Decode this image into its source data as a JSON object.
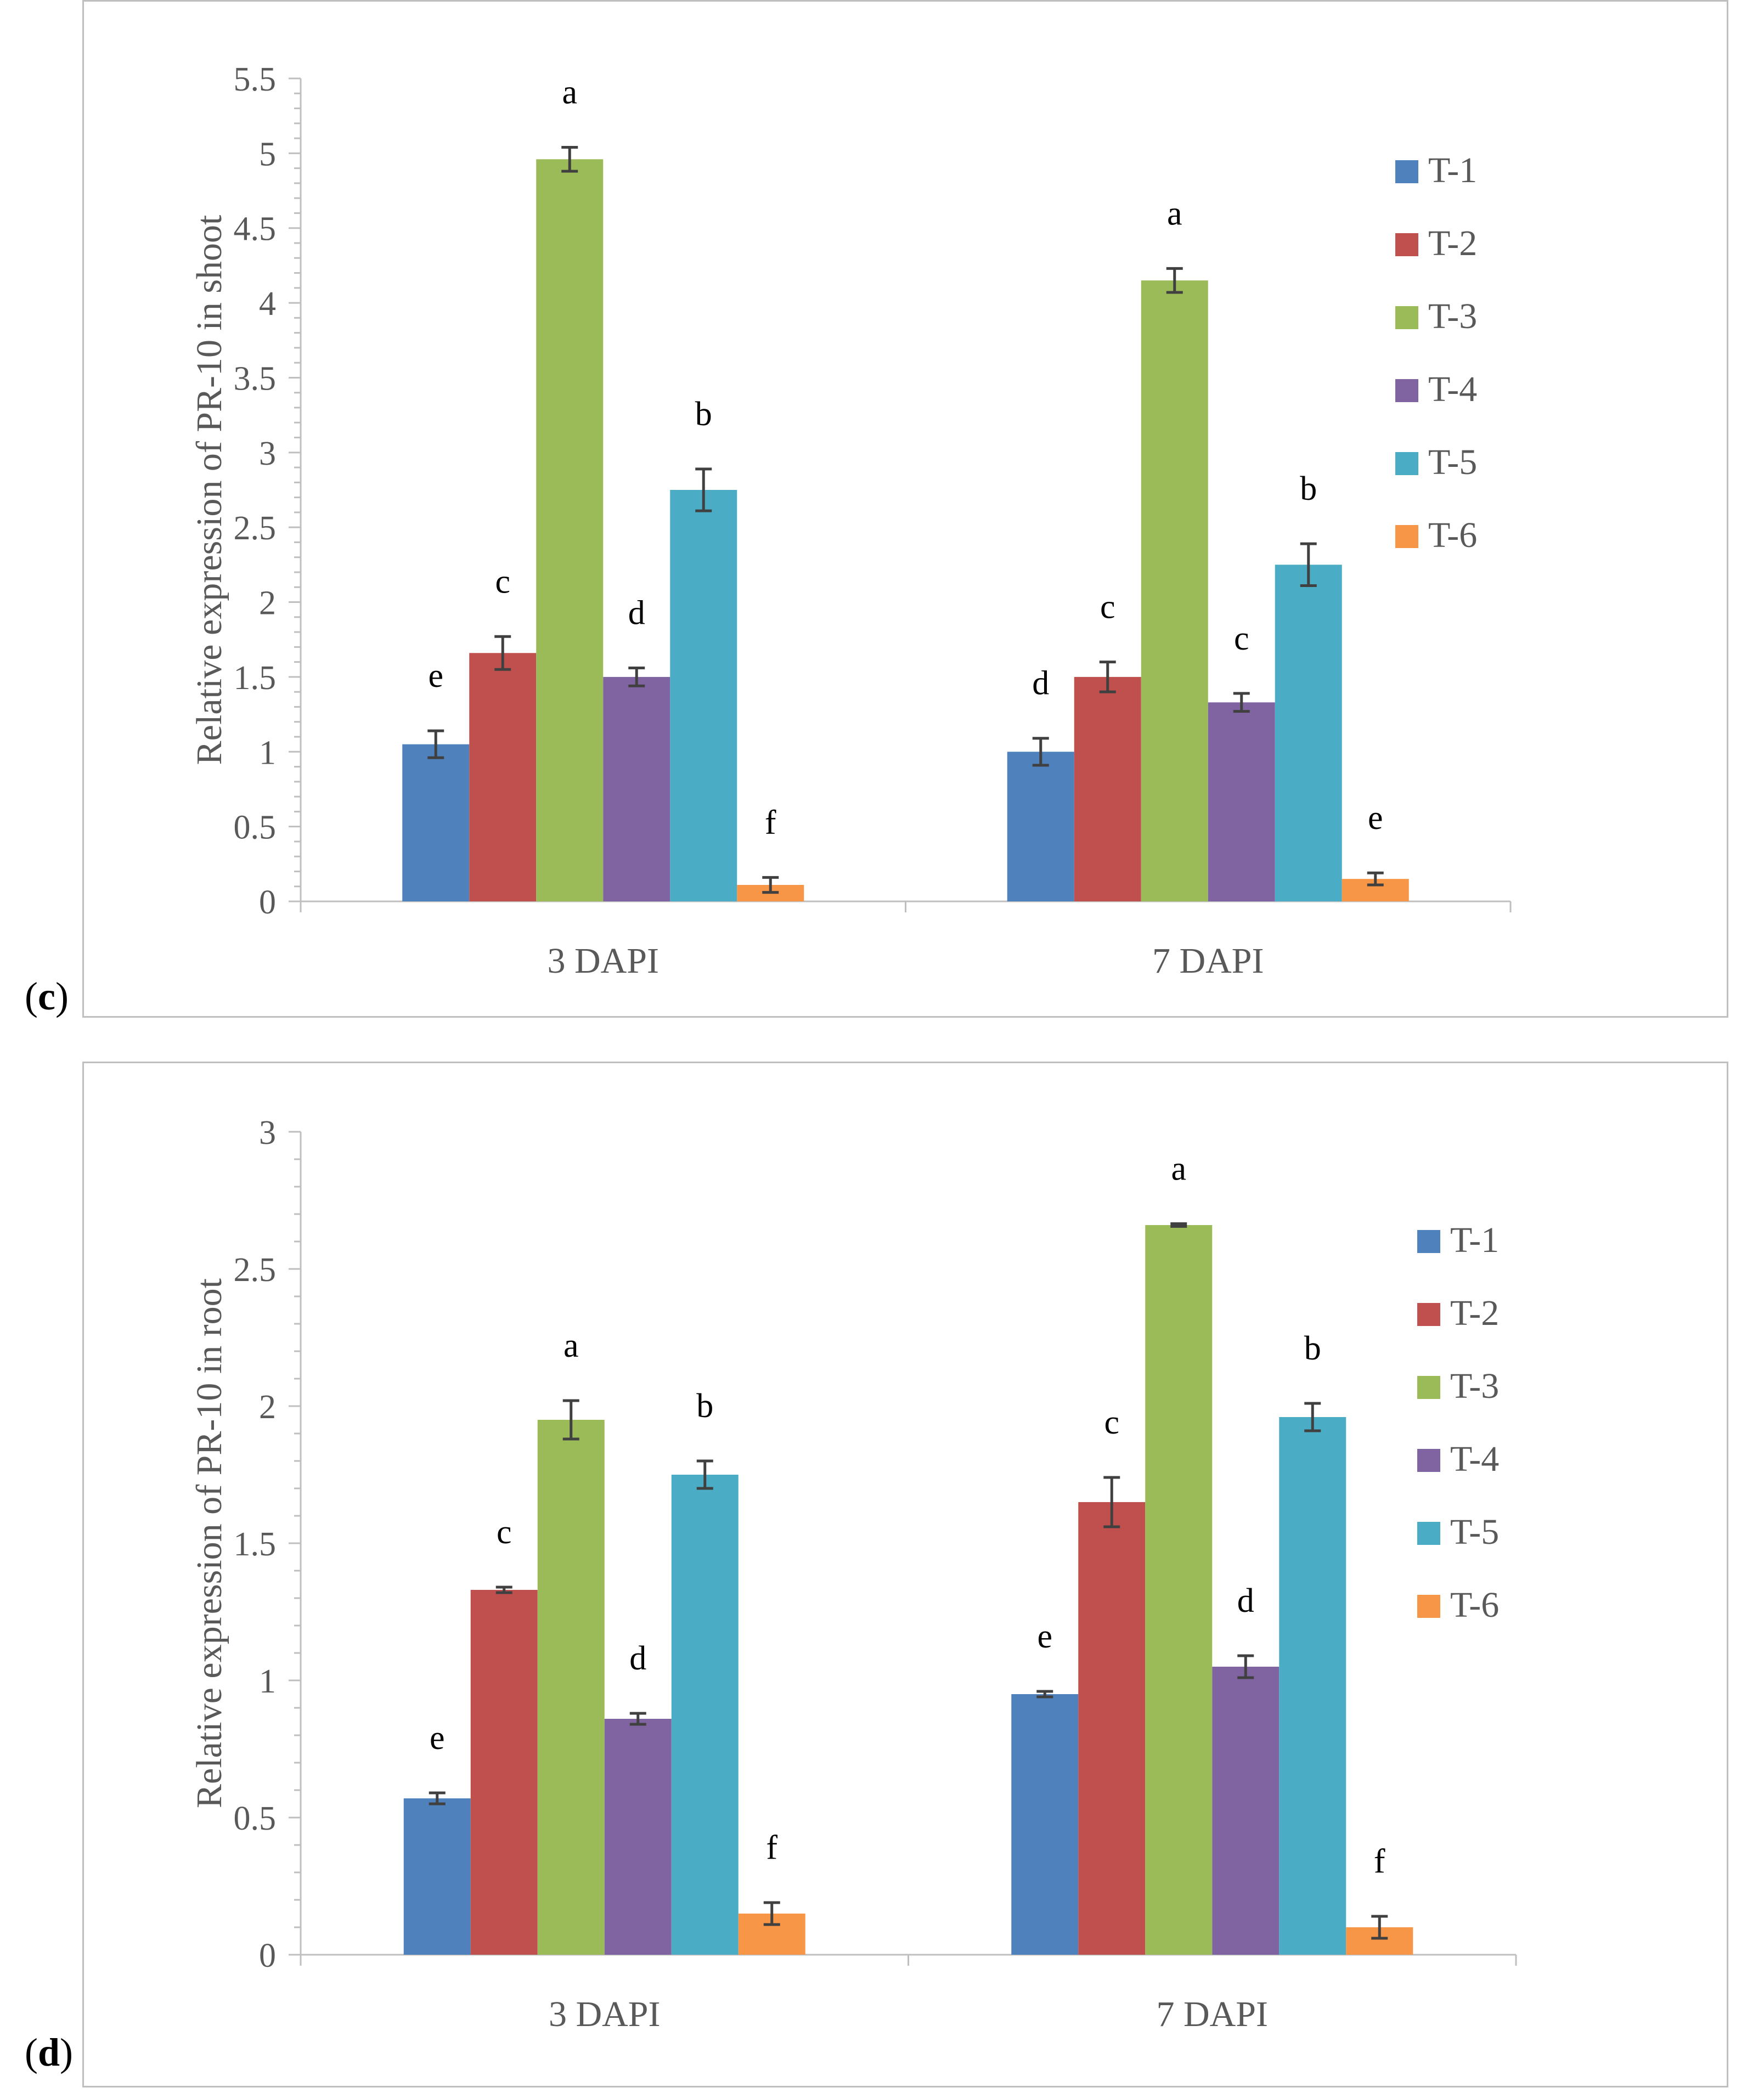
{
  "panels": [
    {
      "label": "c",
      "open": "(",
      "close": ")"
    },
    {
      "label": "d",
      "open": "(",
      "close": ")"
    }
  ],
  "chart_data": [
    {
      "type": "bar",
      "ylabel": "Relative expression of PR-10 in shoot",
      "xlabel": "",
      "categories": [
        "3 DAPI",
        "7 DAPI"
      ],
      "ylim": [
        0,
        5.5
      ],
      "yticks": [
        "0",
        "0.5",
        "1",
        "1.5",
        "2",
        "2.5",
        "3",
        "3.5",
        "4",
        "4.5",
        "5",
        "5.5"
      ],
      "ytick_values": [
        0,
        0.5,
        1,
        1.5,
        2,
        2.5,
        3,
        3.5,
        4,
        4.5,
        5,
        5.5
      ],
      "legend_position": "right",
      "series": [
        {
          "name": "T-1",
          "color": "#4f81bd",
          "values": [
            1.05,
            1.0
          ],
          "errors": [
            0.09,
            0.09
          ],
          "letters": [
            "e",
            "d"
          ]
        },
        {
          "name": "T-2",
          "color": "#c0504d",
          "values": [
            1.66,
            1.5
          ],
          "errors": [
            0.11,
            0.1
          ],
          "letters": [
            "c",
            "c"
          ]
        },
        {
          "name": "T-3",
          "color": "#9bbb59",
          "values": [
            4.96,
            4.15
          ],
          "errors": [
            0.08,
            0.08
          ],
          "letters": [
            "a",
            "a"
          ]
        },
        {
          "name": "T-4",
          "color": "#8064a2",
          "values": [
            1.5,
            1.33
          ],
          "errors": [
            0.06,
            0.06
          ],
          "letters": [
            "d",
            "c"
          ]
        },
        {
          "name": "T-5",
          "color": "#4bacc6",
          "values": [
            2.75,
            2.25
          ],
          "errors": [
            0.14,
            0.14
          ],
          "letters": [
            "b",
            "b"
          ]
        },
        {
          "name": "T-6",
          "color": "#f79646",
          "values": [
            0.11,
            0.15
          ],
          "errors": [
            0.05,
            0.04
          ],
          "letters": [
            "f",
            "e"
          ]
        }
      ]
    },
    {
      "type": "bar",
      "ylabel": "Relative expression of PR-10 in root",
      "xlabel": "",
      "categories": [
        "3 DAPI",
        "7 DAPI"
      ],
      "ylim": [
        0,
        3
      ],
      "yticks": [
        "0",
        "0.5",
        "1",
        "1.5",
        "2",
        "2.5",
        "3"
      ],
      "ytick_values": [
        0,
        0.5,
        1,
        1.5,
        2,
        2.5,
        3
      ],
      "legend_position": "right",
      "series": [
        {
          "name": "T-1",
          "color": "#4f81bd",
          "values": [
            0.57,
            0.95
          ],
          "errors": [
            0.02,
            0.01
          ],
          "letters": [
            "e",
            "e"
          ]
        },
        {
          "name": "T-2",
          "color": "#c0504d",
          "values": [
            1.33,
            1.65
          ],
          "errors": [
            0.01,
            0.09
          ],
          "letters": [
            "c",
            "c"
          ]
        },
        {
          "name": "T-3",
          "color": "#9bbb59",
          "values": [
            1.95,
            2.66
          ],
          "errors": [
            0.07,
            0.005
          ],
          "letters": [
            "a",
            "a"
          ]
        },
        {
          "name": "T-4",
          "color": "#8064a2",
          "values": [
            0.86,
            1.05
          ],
          "errors": [
            0.02,
            0.04
          ],
          "letters": [
            "d",
            "d"
          ]
        },
        {
          "name": "T-5",
          "color": "#4bacc6",
          "values": [
            1.75,
            1.96
          ],
          "errors": [
            0.05,
            0.05
          ],
          "letters": [
            "b",
            "b"
          ]
        },
        {
          "name": "T-6",
          "color": "#f79646",
          "values": [
            0.15,
            0.1
          ],
          "errors": [
            0.04,
            0.04
          ],
          "letters": [
            "f",
            "f"
          ]
        }
      ]
    }
  ]
}
